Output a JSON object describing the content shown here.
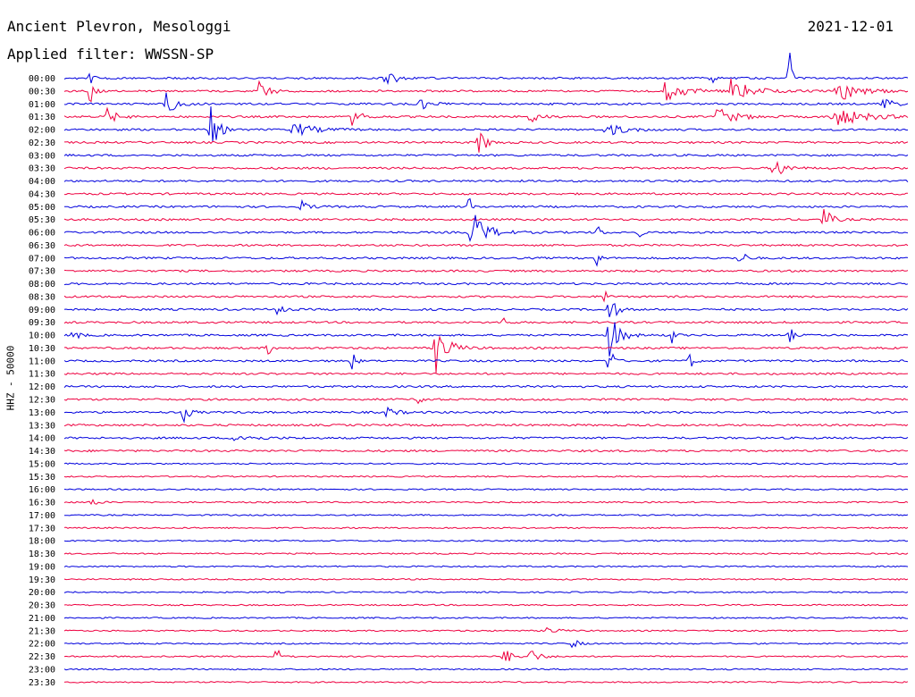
{
  "header": {
    "title": "Ancient Plevron, Mesologgi",
    "date": "2021-12-01",
    "filter": "Applied filter: WWSSN-SP"
  },
  "chart_data": {
    "type": "helicorder",
    "station_label": "HHZ - 50000",
    "times": [
      "00:00",
      "00:30",
      "01:00",
      "01:30",
      "02:00",
      "02:30",
      "03:00",
      "03:30",
      "04:00",
      "04:30",
      "05:00",
      "05:30",
      "06:00",
      "06:30",
      "07:00",
      "07:30",
      "08:00",
      "08:30",
      "09:00",
      "09:30",
      "10:00",
      "10:30",
      "11:00",
      "11:30",
      "12:00",
      "12:30",
      "13:00",
      "13:30",
      "14:00",
      "14:30",
      "15:00",
      "15:30",
      "16:00",
      "16:30",
      "17:00",
      "17:30",
      "18:00",
      "18:30",
      "19:00",
      "19:30",
      "20:00",
      "20:30",
      "21:00",
      "21:30",
      "22:00",
      "22:30",
      "23:00",
      "23:30"
    ],
    "colors": [
      "#0000dd",
      "#ee0040"
    ],
    "events": [
      {
        "trace": 0,
        "t": 0.03,
        "a": 50,
        "w": 0.002
      },
      {
        "trace": 0,
        "t": 0.38,
        "a": 12,
        "w": 0.01
      },
      {
        "trace": 0,
        "t": 0.765,
        "a": 48,
        "w": 0.002
      },
      {
        "trace": 0,
        "t": 0.86,
        "a": 40,
        "w": 0.002
      },
      {
        "trace": 1,
        "t": 0.03,
        "a": 52,
        "w": 0.003
      },
      {
        "trace": 1,
        "t": 0.23,
        "a": 12,
        "w": 0.01
      },
      {
        "trace": 1,
        "t": 0.71,
        "a": 12,
        "w": 0.02
      },
      {
        "trace": 1,
        "t": 0.79,
        "a": 14,
        "w": 0.02
      },
      {
        "trace": 1,
        "t": 0.915,
        "a": 14,
        "w": 0.02
      },
      {
        "trace": 2,
        "t": 0.12,
        "a": 14,
        "w": 0.01
      },
      {
        "trace": 2,
        "t": 0.42,
        "a": 8,
        "w": 0.01
      },
      {
        "trace": 2,
        "t": 0.97,
        "a": 10,
        "w": 0.01
      },
      {
        "trace": 3,
        "t": 0.05,
        "a": 10,
        "w": 0.01
      },
      {
        "trace": 3,
        "t": 0.34,
        "a": 10,
        "w": 0.01
      },
      {
        "trace": 3,
        "t": 0.55,
        "a": 9,
        "w": 0.01
      },
      {
        "trace": 3,
        "t": 0.77,
        "a": 12,
        "w": 0.02
      },
      {
        "trace": 3,
        "t": 0.91,
        "a": 12,
        "w": 0.03
      },
      {
        "trace": 4,
        "t": 0.17,
        "a": 40,
        "w": 0.008
      },
      {
        "trace": 4,
        "t": 0.27,
        "a": 9,
        "w": 0.02
      },
      {
        "trace": 4,
        "t": 0.64,
        "a": 8,
        "w": 0.02
      },
      {
        "trace": 5,
        "t": 0.49,
        "a": 18,
        "w": 0.008
      },
      {
        "trace": 7,
        "t": 0.84,
        "a": 16,
        "w": 0.01
      },
      {
        "trace": 10,
        "t": 0.28,
        "a": 8,
        "w": 0.008
      },
      {
        "trace": 10,
        "t": 0.48,
        "a": 30,
        "w": 0.002
      },
      {
        "trace": 11,
        "t": 0.9,
        "a": 14,
        "w": 0.008
      },
      {
        "trace": 12,
        "t": 0.48,
        "a": 30,
        "w": 0.015
      },
      {
        "trace": 12,
        "t": 0.63,
        "a": 22,
        "w": 0.003
      },
      {
        "trace": 12,
        "t": 0.68,
        "a": 12,
        "w": 0.003
      },
      {
        "trace": 14,
        "t": 0.63,
        "a": 18,
        "w": 0.003
      },
      {
        "trace": 14,
        "t": 0.8,
        "a": 12,
        "w": 0.006
      },
      {
        "trace": 17,
        "t": 0.64,
        "a": 18,
        "w": 0.003
      },
      {
        "trace": 18,
        "t": 0.25,
        "a": 14,
        "w": 0.005
      },
      {
        "trace": 18,
        "t": 0.645,
        "a": 26,
        "w": 0.006
      },
      {
        "trace": 19,
        "t": 0.52,
        "a": 12,
        "w": 0.003
      },
      {
        "trace": 20,
        "t": 0.01,
        "a": 8,
        "w": 0.006
      },
      {
        "trace": 20,
        "t": 0.645,
        "a": 30,
        "w": 0.01
      },
      {
        "trace": 20,
        "t": 0.72,
        "a": 12,
        "w": 0.003
      },
      {
        "trace": 20,
        "t": 0.86,
        "a": 12,
        "w": 0.003
      },
      {
        "trace": 21,
        "t": 0.24,
        "a": 12,
        "w": 0.004
      },
      {
        "trace": 21,
        "t": 0.44,
        "a": 30,
        "w": 0.012
      },
      {
        "trace": 22,
        "t": 0.34,
        "a": 14,
        "w": 0.004
      },
      {
        "trace": 22,
        "t": 0.645,
        "a": 30,
        "w": 0.004
      },
      {
        "trace": 22,
        "t": 0.74,
        "a": 14,
        "w": 0.004
      },
      {
        "trace": 25,
        "t": 0.42,
        "a": 14,
        "w": 0.004
      },
      {
        "trace": 26,
        "t": 0.14,
        "a": 14,
        "w": 0.006
      },
      {
        "trace": 26,
        "t": 0.38,
        "a": 7,
        "w": 0.01
      },
      {
        "trace": 28,
        "t": 0.2,
        "a": 5,
        "w": 0.02
      },
      {
        "trace": 33,
        "t": 0.03,
        "a": 8,
        "w": 0.006
      },
      {
        "trace": 43,
        "t": 0.57,
        "a": 6,
        "w": 0.01
      },
      {
        "trace": 44,
        "t": 0.6,
        "a": 10,
        "w": 0.006
      },
      {
        "trace": 45,
        "t": 0.25,
        "a": 12,
        "w": 0.006
      },
      {
        "trace": 45,
        "t": 0.52,
        "a": 10,
        "w": 0.01
      },
      {
        "trace": 45,
        "t": 0.55,
        "a": 10,
        "w": 0.01
      }
    ]
  }
}
